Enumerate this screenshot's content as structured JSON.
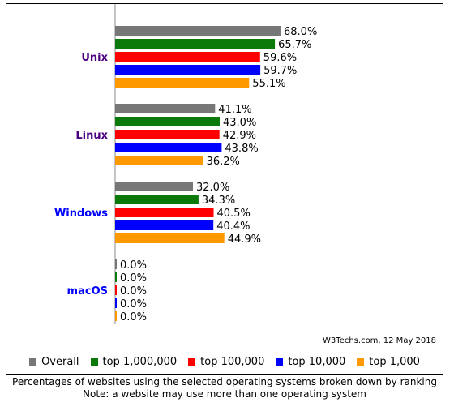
{
  "chart_data": {
    "type": "bar",
    "orientation": "horizontal",
    "categories": [
      "Unix",
      "Linux",
      "Windows",
      "macOS"
    ],
    "category_colors": [
      "#4b0082",
      "#4b0082",
      "#0000ff",
      "#0000ff"
    ],
    "series": [
      {
        "name": "Overall",
        "color": "#777777",
        "values": [
          68.0,
          41.1,
          32.0,
          0.0
        ],
        "labels": [
          "68.0%",
          "41.1%",
          "32.0%",
          "0.0%"
        ]
      },
      {
        "name": "top 1,000,000",
        "color": "#0b7a0b",
        "values": [
          65.7,
          43.0,
          34.3,
          0.0
        ],
        "labels": [
          "65.7%",
          "43.0%",
          "34.3%",
          "0.0%"
        ]
      },
      {
        "name": "top 100,000",
        "color": "#ff0000",
        "values": [
          59.6,
          42.9,
          40.5,
          0.0
        ],
        "labels": [
          "59.6%",
          "42.9%",
          "40.5%",
          "0.0%"
        ]
      },
      {
        "name": "top 10,000",
        "color": "#0000ff",
        "values": [
          59.7,
          43.8,
          40.4,
          0.0
        ],
        "labels": [
          "59.7%",
          "43.8%",
          "40.4%",
          "0.0%"
        ]
      },
      {
        "name": "top 1,000",
        "color": "#ff9900",
        "values": [
          55.1,
          36.2,
          44.9,
          0.0
        ],
        "labels": [
          "55.1%",
          "36.2%",
          "44.9%",
          "0.0%"
        ]
      }
    ],
    "xlim": [
      0,
      100
    ],
    "legend_position": "bottom",
    "grid": false
  },
  "source": "W3Techs.com, 12 May 2018",
  "caption": {
    "line1": "Percentages of websites using the selected operating systems broken down by ranking",
    "line2": "Note: a website may use more than one operating system"
  }
}
